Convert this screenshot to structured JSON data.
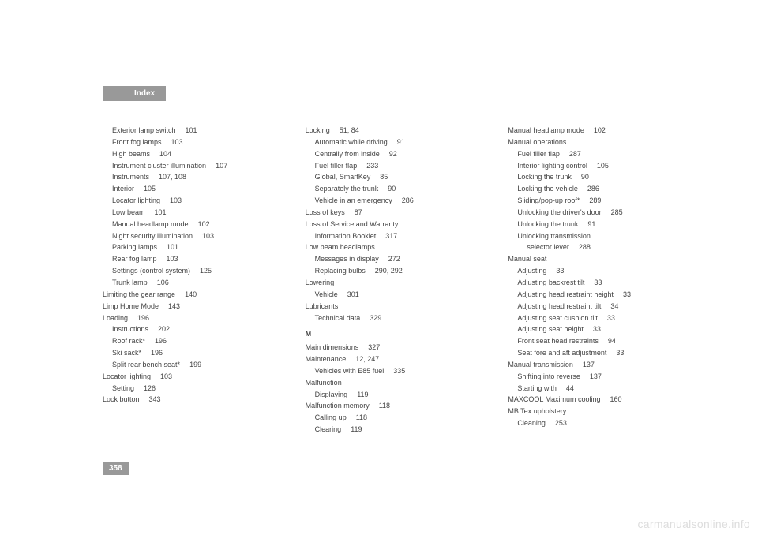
{
  "header": {
    "title": "Index"
  },
  "pageNumber": "358",
  "watermark": "carmanualsonline.info",
  "col1": [
    {
      "indent": 1,
      "text": "Exterior lamp switch",
      "pages": "101"
    },
    {
      "indent": 1,
      "text": "Front fog lamps",
      "pages": "103"
    },
    {
      "indent": 1,
      "text": "High beams",
      "pages": "104"
    },
    {
      "indent": 1,
      "text": "Instrument cluster illumination",
      "pages": "107"
    },
    {
      "indent": 1,
      "text": "Instruments",
      "pages": "107, 108"
    },
    {
      "indent": 1,
      "text": "Interior",
      "pages": "105"
    },
    {
      "indent": 1,
      "text": "Locator lighting",
      "pages": "103"
    },
    {
      "indent": 1,
      "text": "Low beam",
      "pages": "101"
    },
    {
      "indent": 1,
      "text": "Manual headlamp mode",
      "pages": "102"
    },
    {
      "indent": 1,
      "text": "Night security illumination",
      "pages": "103"
    },
    {
      "indent": 1,
      "text": "Parking lamps",
      "pages": "101"
    },
    {
      "indent": 1,
      "text": "Rear fog lamp",
      "pages": "103"
    },
    {
      "indent": 1,
      "text": "Settings (control system)",
      "pages": "125"
    },
    {
      "indent": 1,
      "text": "Trunk lamp",
      "pages": "106"
    },
    {
      "indent": 0,
      "text": "Limiting the gear range",
      "pages": "140"
    },
    {
      "indent": 0,
      "text": "Limp Home Mode",
      "pages": "143"
    },
    {
      "indent": 0,
      "text": "Loading",
      "pages": "196"
    },
    {
      "indent": 1,
      "text": "Instructions",
      "pages": "202"
    },
    {
      "indent": 1,
      "text": "Roof rack*",
      "pages": "196"
    },
    {
      "indent": 1,
      "text": "Ski sack*",
      "pages": "196"
    },
    {
      "indent": 1,
      "text": "Split rear bench seat*",
      "pages": "199"
    },
    {
      "indent": 0,
      "text": "Locator lighting",
      "pages": "103"
    },
    {
      "indent": 1,
      "text": "Setting",
      "pages": "126"
    },
    {
      "indent": 0,
      "text": "Lock button",
      "pages": "343"
    }
  ],
  "col2": [
    {
      "indent": 0,
      "text": "Locking",
      "pages": "51, 84"
    },
    {
      "indent": 1,
      "text": "Automatic while driving",
      "pages": "91"
    },
    {
      "indent": 1,
      "text": "Centrally from inside",
      "pages": "92"
    },
    {
      "indent": 1,
      "text": "Fuel filler flap",
      "pages": "233"
    },
    {
      "indent": 1,
      "text": "Global, SmartKey",
      "pages": "85"
    },
    {
      "indent": 1,
      "text": "Separately the trunk",
      "pages": "90"
    },
    {
      "indent": 1,
      "text": "Vehicle in an emergency",
      "pages": "286"
    },
    {
      "indent": 0,
      "text": "Loss of keys",
      "pages": "87"
    },
    {
      "indent": 0,
      "text": "Loss of Service and Warranty",
      "pages": ""
    },
    {
      "indent": 1,
      "text": "Information Booklet",
      "pages": "317"
    },
    {
      "indent": 0,
      "text": "Low beam headlamps",
      "pages": ""
    },
    {
      "indent": 1,
      "text": "Messages in display",
      "pages": "272"
    },
    {
      "indent": 1,
      "text": "Replacing bulbs",
      "pages": "290, 292"
    },
    {
      "indent": 0,
      "text": "Lowering",
      "pages": ""
    },
    {
      "indent": 1,
      "text": "Vehicle",
      "pages": "301"
    },
    {
      "indent": 0,
      "text": "Lubricants",
      "pages": ""
    },
    {
      "indent": 1,
      "text": "Technical data",
      "pages": "329"
    },
    {
      "letter": "M"
    },
    {
      "indent": 0,
      "text": "Main dimensions",
      "pages": "327"
    },
    {
      "indent": 0,
      "text": "Maintenance",
      "pages": "12, 247"
    },
    {
      "indent": 1,
      "text": "Vehicles with E85 fuel",
      "pages": "335"
    },
    {
      "indent": 0,
      "text": "Malfunction",
      "pages": ""
    },
    {
      "indent": 1,
      "text": "Displaying",
      "pages": "119"
    },
    {
      "indent": 0,
      "text": "Malfunction memory",
      "pages": "118"
    },
    {
      "indent": 1,
      "text": "Calling up",
      "pages": "118"
    },
    {
      "indent": 1,
      "text": "Clearing",
      "pages": "119"
    }
  ],
  "col3": [
    {
      "indent": 0,
      "text": "Manual headlamp mode",
      "pages": "102"
    },
    {
      "indent": 0,
      "text": "Manual operations",
      "pages": ""
    },
    {
      "indent": 1,
      "text": "Fuel filler flap",
      "pages": "287"
    },
    {
      "indent": 1,
      "text": "Interior lighting control",
      "pages": "105"
    },
    {
      "indent": 1,
      "text": "Locking the trunk",
      "pages": "90"
    },
    {
      "indent": 1,
      "text": "Locking the vehicle",
      "pages": "286"
    },
    {
      "indent": 1,
      "text": "Sliding/pop-up roof*",
      "pages": "289"
    },
    {
      "indent": 1,
      "text": "Unlocking the driver's door",
      "pages": "285"
    },
    {
      "indent": 1,
      "text": "Unlocking the trunk",
      "pages": "91"
    },
    {
      "indent": 1,
      "text": "Unlocking transmission",
      "pages": ""
    },
    {
      "indent": 2,
      "text": "selector lever",
      "pages": "288"
    },
    {
      "indent": 0,
      "text": "Manual seat",
      "pages": ""
    },
    {
      "indent": 1,
      "text": "Adjusting",
      "pages": "33"
    },
    {
      "indent": 1,
      "text": "Adjusting backrest tilt",
      "pages": "33"
    },
    {
      "indent": 1,
      "text": "Adjusting head restraint height",
      "pages": "33"
    },
    {
      "indent": 1,
      "text": "Adjusting head restraint tilt",
      "pages": "34"
    },
    {
      "indent": 1,
      "text": "Adjusting seat cushion tilt",
      "pages": "33"
    },
    {
      "indent": 1,
      "text": "Adjusting seat height",
      "pages": "33"
    },
    {
      "indent": 1,
      "text": "Front seat head restraints",
      "pages": "94"
    },
    {
      "indent": 1,
      "text": "Seat fore and aft adjustment",
      "pages": "33"
    },
    {
      "indent": 0,
      "text": "Manual transmission",
      "pages": "137"
    },
    {
      "indent": 1,
      "text": "Shifting into reverse",
      "pages": "137"
    },
    {
      "indent": 1,
      "text": "Starting with",
      "pages": "44"
    },
    {
      "indent": 0,
      "text": "MAXCOOL Maximum cooling",
      "pages": "160"
    },
    {
      "indent": 0,
      "text": "MB Tex upholstery",
      "pages": ""
    },
    {
      "indent": 1,
      "text": "Cleaning",
      "pages": "253"
    }
  ]
}
